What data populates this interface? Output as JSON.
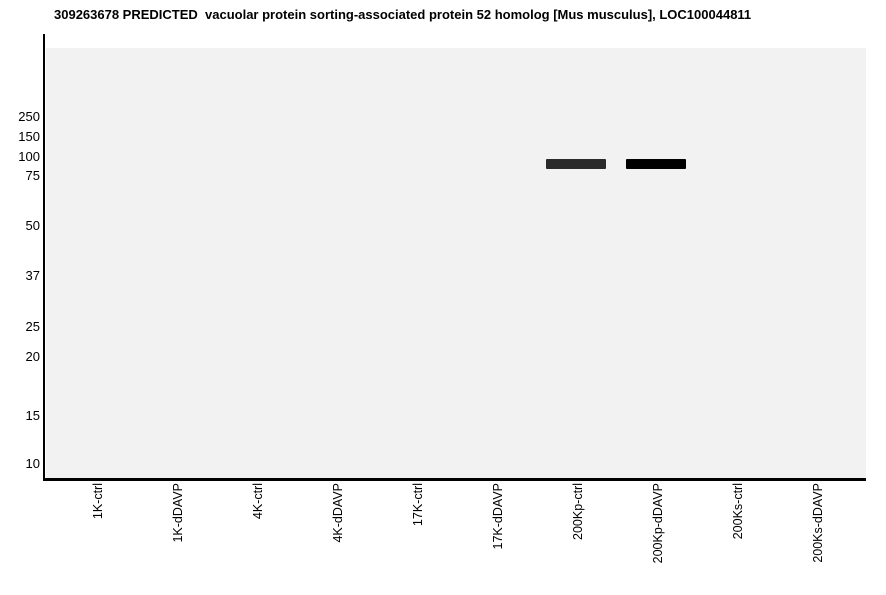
{
  "title": "309263678 PREDICTED  vacuolar protein sorting-associated protein 52 homolog [Mus musculus], LOC100044811",
  "chart_data": {
    "type": "gel-blot",
    "title": "309263678 PREDICTED  vacuolar protein sorting-associated protein 52 homolog [Mus musculus], LOC100044811",
    "xlabel": "",
    "ylabel": "",
    "y_ticks": [
      "250",
      "150",
      "100",
      "75",
      "50",
      "37",
      "25",
      "20",
      "15",
      "10"
    ],
    "y_tick_unit": "kDa",
    "y_scale": "gel-migration (nonlinear, decreasing downward)",
    "lanes": [
      "1K-ctrl",
      "1K-dDAVP",
      "4K-ctrl",
      "4K-dDAVP",
      "17K-ctrl",
      "17K-dDAVP",
      "200Kp-ctrl",
      "200Kp-dDAVP",
      "200Ks-ctrl",
      "200Ks-dDAVP"
    ],
    "bands": [
      {
        "lane": "200Kp-ctrl",
        "lane_index": 6,
        "approx_mw_kDa": 90,
        "intensity": 0.85,
        "color": "#2a2a2a"
      },
      {
        "lane": "200Kp-dDAVP",
        "lane_index": 7,
        "approx_mw_kDa": 90,
        "intensity": 1.0,
        "color": "#000000"
      }
    ],
    "legend": null,
    "grid": false
  },
  "colors": {
    "page_background": "#ffffff",
    "plot_background": "#f2f2f2",
    "axis": "#000000",
    "title_text": "#000000",
    "tick_text": "#000000"
  }
}
